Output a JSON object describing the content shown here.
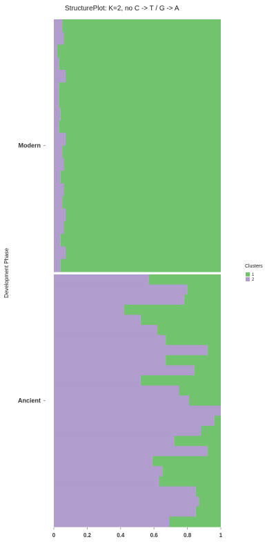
{
  "chart_data": {
    "type": "bar",
    "orientation": "horizontal-stacked",
    "title": "StructurePlot: K=2, no C -> T / G -> A",
    "ylabel": "Development Phase",
    "xlabel": "",
    "xlim": [
      0,
      1
    ],
    "xticks": [
      "0",
      "0.2",
      "0.4",
      "0.6",
      "0.8",
      "1"
    ],
    "grid": false,
    "legend": {
      "title": "Clusters",
      "placement": "right",
      "entries": [
        {
          "label": "1",
          "color": "#72c36e"
        },
        {
          "label": "2",
          "color": "#b09ccd"
        }
      ]
    },
    "groups": [
      {
        "name": "Modern",
        "cluster2": [
          0.05,
          0.05,
          0.06,
          0.06,
          0.02,
          0.02,
          0.03,
          0.03,
          0.07,
          0.07,
          0.03,
          0.03,
          0.03,
          0.03,
          0.04,
          0.04,
          0.03,
          0.03,
          0.07,
          0.07,
          0.05,
          0.05,
          0.06,
          0.06,
          0.04,
          0.04,
          0.06,
          0.06,
          0.05,
          0.05,
          0.07,
          0.07,
          0.06,
          0.06,
          0.04,
          0.04,
          0.07,
          0.07,
          0.04,
          0.04
        ]
      },
      {
        "name": "Ancient",
        "cluster2": [
          0.57,
          0.8,
          0.78,
          0.42,
          0.52,
          0.62,
          0.67,
          0.92,
          0.67,
          0.84,
          0.52,
          0.75,
          0.81,
          1.0,
          0.96,
          0.88,
          0.72,
          0.92,
          0.59,
          0.65,
          0.63,
          0.85,
          0.87,
          0.85,
          0.69
        ]
      }
    ]
  }
}
